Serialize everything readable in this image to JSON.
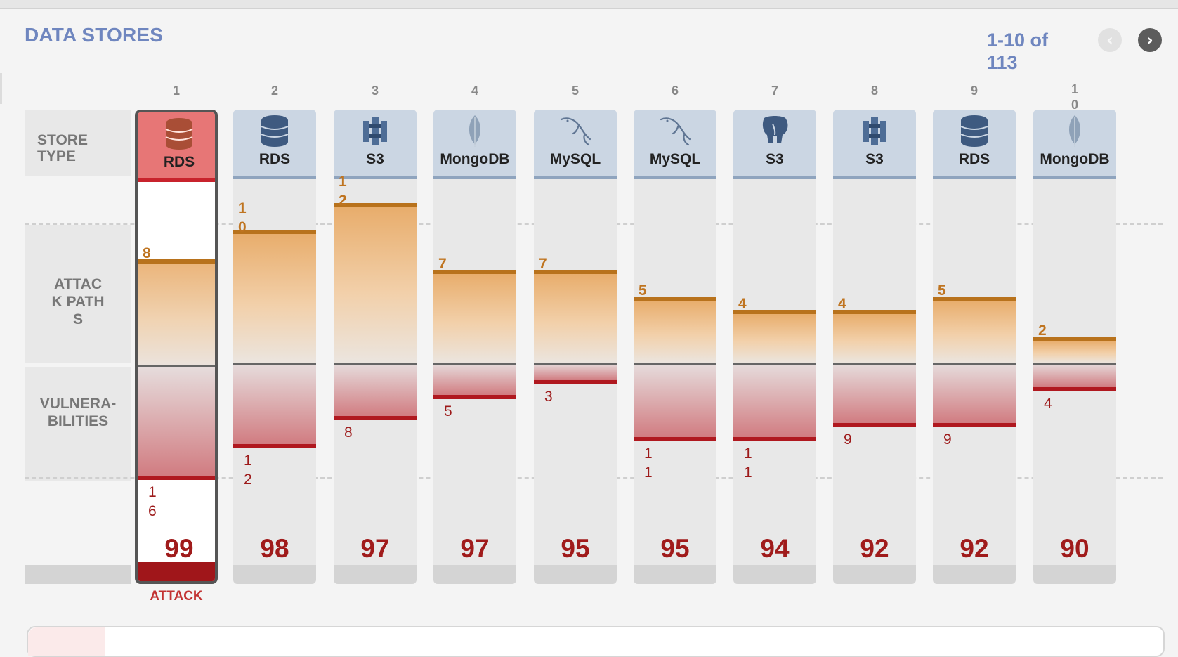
{
  "title": "DATA STORES",
  "pager": {
    "range": "1-10 of 113",
    "prev_icon": "chevron-left-icon",
    "next_icon": "chevron-right-icon"
  },
  "row_labels": {
    "store_type": "STORE TYPE",
    "attack_paths": "ATTACK PATHS",
    "vulnerabilities": "VULNERA-BILITIES"
  },
  "attack_label": "ATTACK",
  "colors": {
    "accent": "#6f86bf",
    "attack": "#bf7420",
    "vuln": "#a01b1b",
    "selected_header": "#e77676"
  },
  "stores": [
    {
      "rank": "1",
      "type": "RDS",
      "icon": "rds-database-icon",
      "attack_paths": 8,
      "vulnerabilities": 16,
      "score": "99",
      "selected": true
    },
    {
      "rank": "2",
      "type": "RDS",
      "icon": "rds-database-icon",
      "attack_paths": 10,
      "vulnerabilities": 12,
      "score": "98"
    },
    {
      "rank": "3",
      "type": "S3",
      "icon": "s3-bucket-icon",
      "attack_paths": 12,
      "vulnerabilities": 8,
      "score": "97"
    },
    {
      "rank": "4",
      "type": "MongoDB",
      "icon": "mongodb-leaf-icon",
      "attack_paths": 7,
      "vulnerabilities": 5,
      "score": "97"
    },
    {
      "rank": "5",
      "type": "MySQL",
      "icon": "mysql-dolphin-icon",
      "attack_paths": 7,
      "vulnerabilities": 3,
      "score": "95"
    },
    {
      "rank": "6",
      "type": "MySQL",
      "icon": "mysql-dolphin-icon",
      "attack_paths": 5,
      "vulnerabilities": 11,
      "score": "95"
    },
    {
      "rank": "7",
      "type": "S3",
      "icon": "postgres-elephant-icon",
      "attack_paths": 4,
      "vulnerabilities": 11,
      "score": "94"
    },
    {
      "rank": "8",
      "type": "S3",
      "icon": "s3-bucket-icon",
      "attack_paths": 4,
      "vulnerabilities": 9,
      "score": "92"
    },
    {
      "rank": "9",
      "type": "RDS",
      "icon": "rds-database-icon",
      "attack_paths": 5,
      "vulnerabilities": 9,
      "score": "92"
    },
    {
      "rank": "10",
      "type": "MongoDB",
      "icon": "mongodb-leaf-icon",
      "attack_paths": 2,
      "vulnerabilities": 4,
      "score": "90"
    }
  ]
}
